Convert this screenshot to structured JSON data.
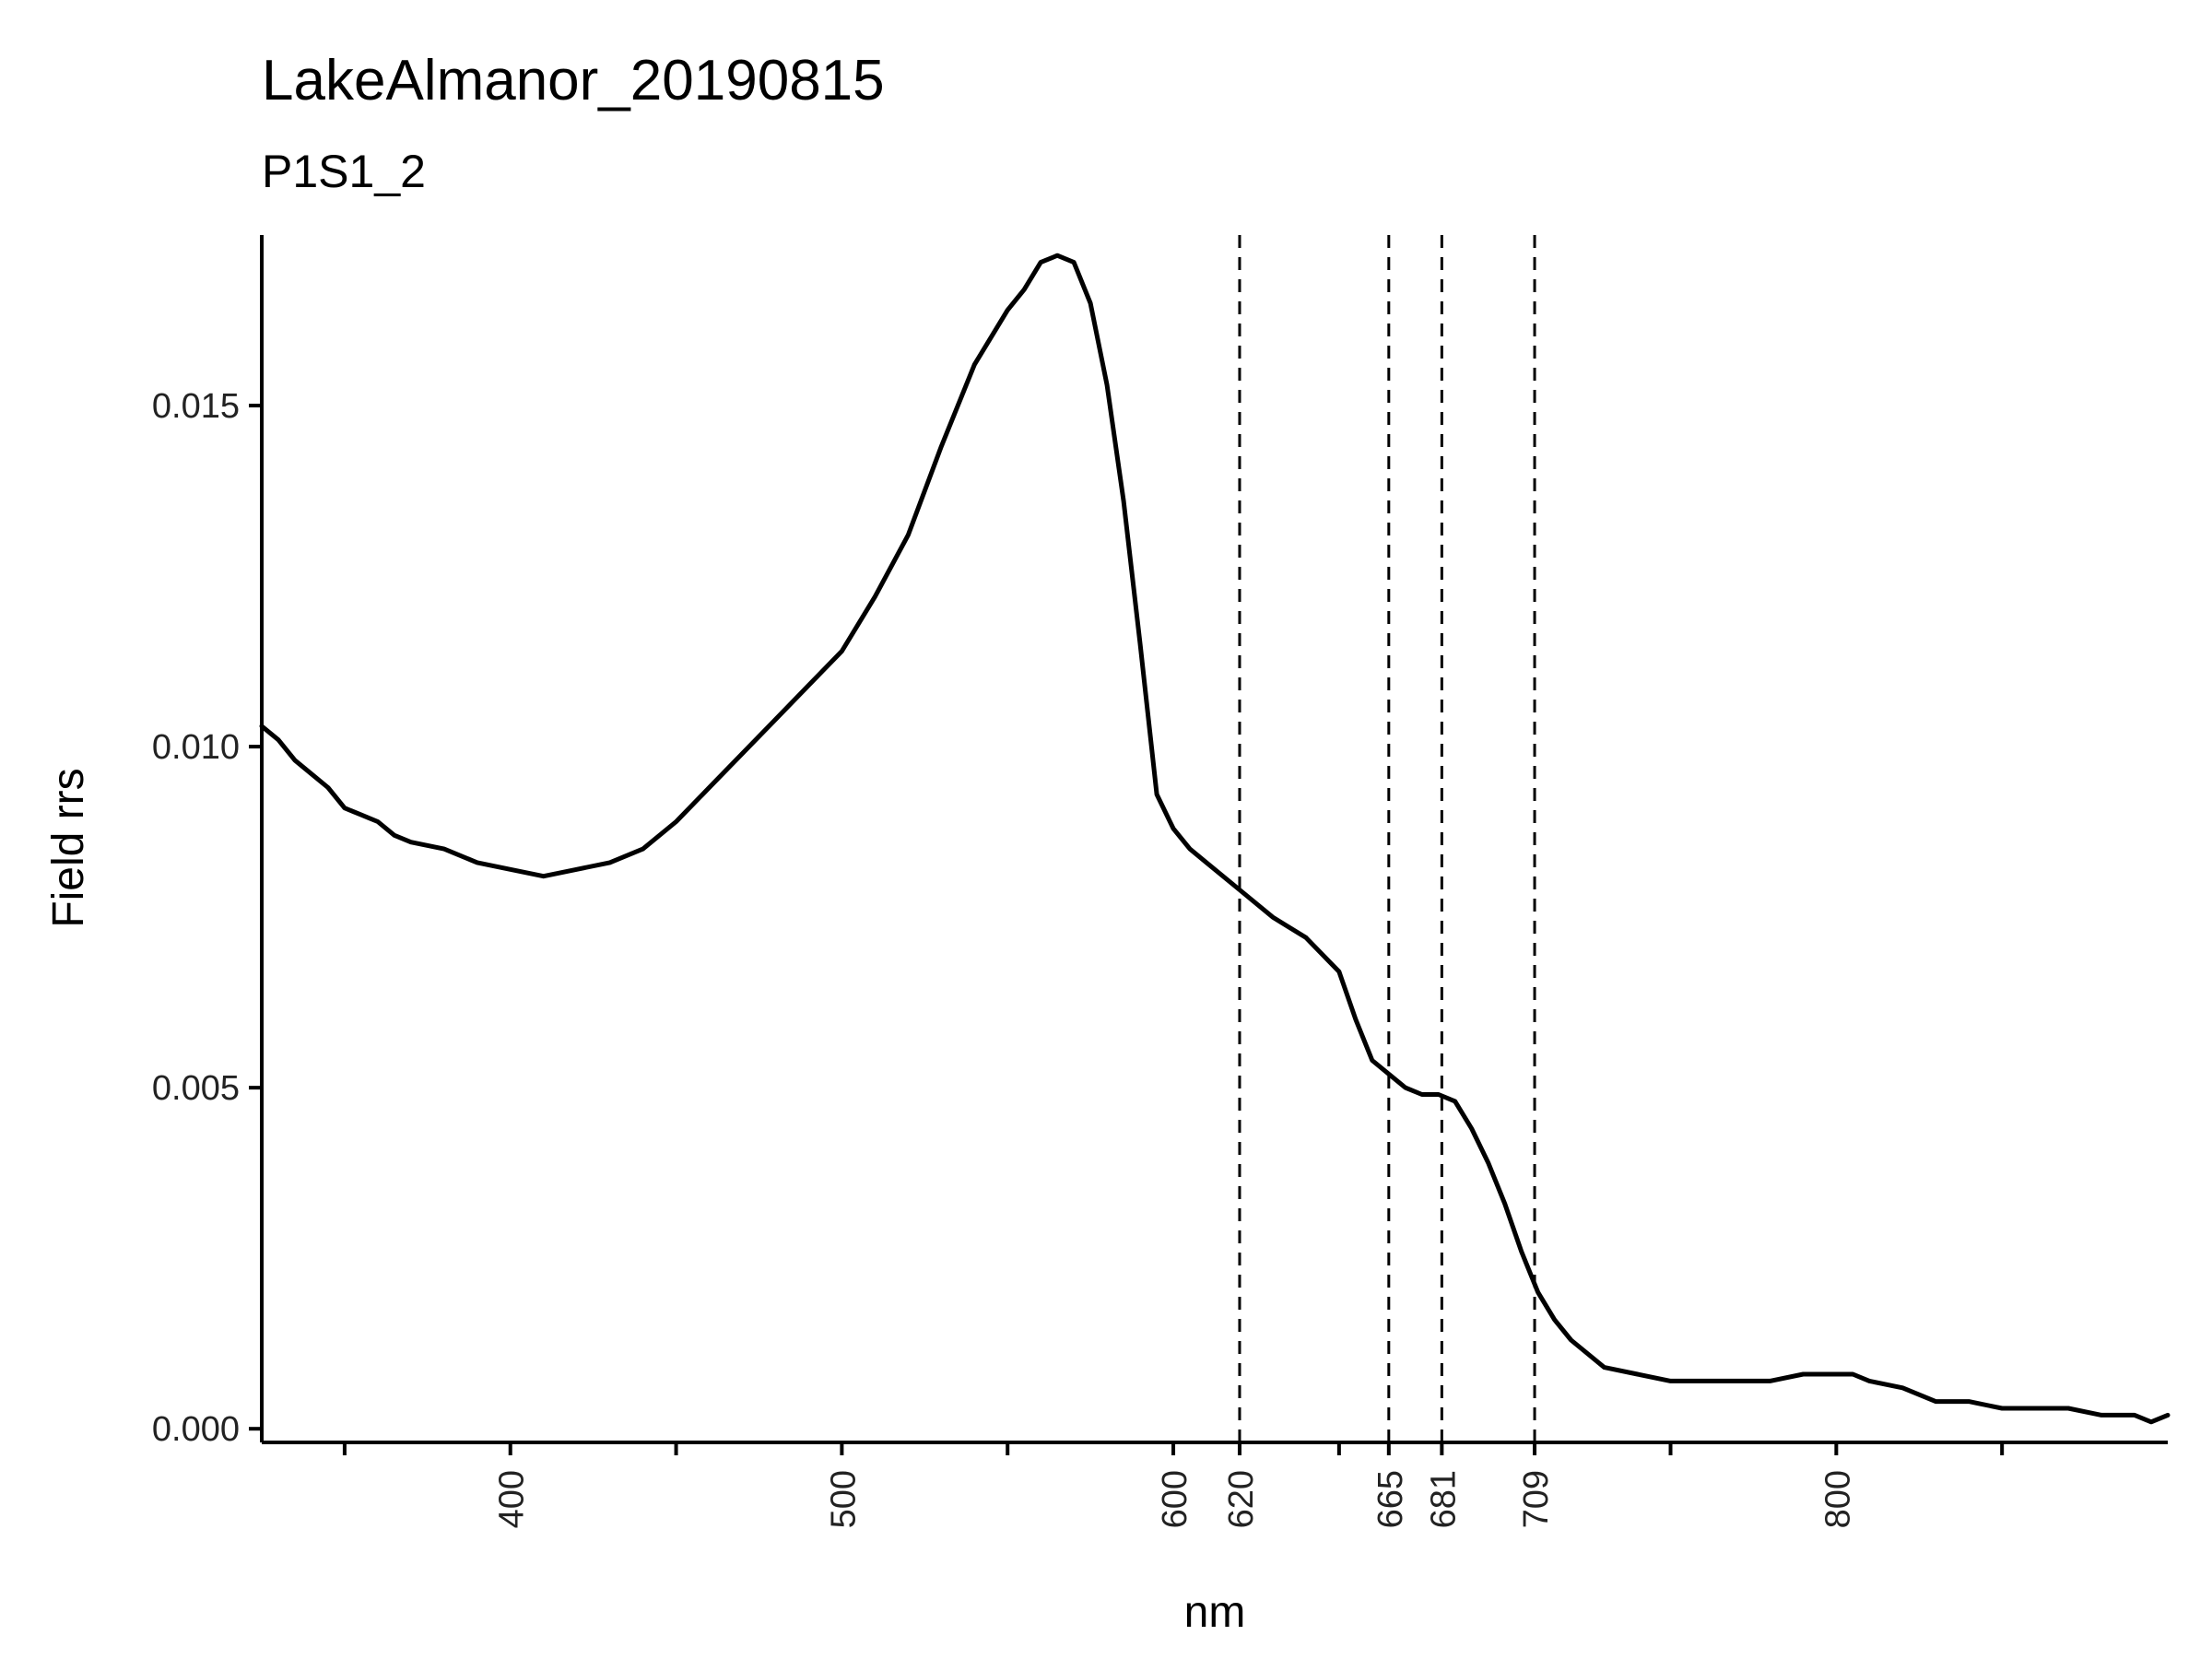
{
  "chart_data": {
    "type": "line",
    "title": "LakeAlmanor_20190815",
    "subtitle": "P1S1_2",
    "xlabel": "nm",
    "ylabel": "Field rrs",
    "xlim": [
      325,
      900
    ],
    "ylim": [
      -0.0002,
      0.0175
    ],
    "grid": false,
    "legend": "none",
    "line_color": "#000000",
    "x_ticks": [
      350,
      400,
      450,
      500,
      550,
      600,
      620,
      650,
      665,
      681,
      709,
      750,
      800,
      850
    ],
    "x_tick_labels": [
      {
        "value": 400,
        "label": "400"
      },
      {
        "value": 500,
        "label": "500"
      },
      {
        "value": 600,
        "label": "600"
      },
      {
        "value": 620,
        "label": "620"
      },
      {
        "value": 665,
        "label": "665"
      },
      {
        "value": 681,
        "label": "681"
      },
      {
        "value": 709,
        "label": "709"
      },
      {
        "value": 800,
        "label": "800"
      }
    ],
    "y_ticks": [
      {
        "value": 0.0,
        "label": "0.000"
      },
      {
        "value": 0.005,
        "label": "0.005"
      },
      {
        "value": 0.01,
        "label": "0.010"
      },
      {
        "value": 0.015,
        "label": "0.015"
      }
    ],
    "vlines": [
      620,
      665,
      681,
      709
    ],
    "series": [
      {
        "x": [
          325,
          330,
          335,
          340,
          345,
          350,
          355,
          360,
          365,
          370,
          380,
          390,
          400,
          410,
          420,
          430,
          440,
          450,
          460,
          470,
          480,
          490,
          500,
          510,
          520,
          530,
          540,
          550,
          555,
          560,
          565,
          570,
          575,
          580,
          585,
          590,
          595,
          600,
          605,
          610,
          620,
          630,
          640,
          650,
          655,
          660,
          665,
          670,
          675,
          680,
          685,
          690,
          695,
          700,
          705,
          710,
          715,
          720,
          730,
          740,
          750,
          760,
          770,
          780,
          790,
          800,
          805,
          810,
          820,
          830,
          840,
          850,
          860,
          870,
          880,
          890,
          895,
          900
        ],
        "y": [
          0.0103,
          0.0101,
          0.0098,
          0.0096,
          0.0094,
          0.0091,
          0.009,
          0.0089,
          0.0087,
          0.0086,
          0.0085,
          0.0083,
          0.0082,
          0.0081,
          0.0082,
          0.0083,
          0.0085,
          0.0089,
          0.0094,
          0.0099,
          0.0104,
          0.0109,
          0.0114,
          0.0122,
          0.0131,
          0.0144,
          0.0156,
          0.0164,
          0.0167,
          0.0171,
          0.0172,
          0.0171,
          0.0165,
          0.0153,
          0.0136,
          0.0115,
          0.0093,
          0.0088,
          0.0085,
          0.0083,
          0.0079,
          0.0075,
          0.0072,
          0.0067,
          0.006,
          0.0054,
          0.0052,
          0.005,
          0.0049,
          0.0049,
          0.0048,
          0.0044,
          0.0039,
          0.0033,
          0.0026,
          0.002,
          0.0016,
          0.0013,
          0.0009,
          0.0008,
          0.0007,
          0.0007,
          0.0007,
          0.0007,
          0.0008,
          0.0008,
          0.0008,
          0.0007,
          0.0006,
          0.0004,
          0.0004,
          0.0003,
          0.0003,
          0.0003,
          0.0002,
          0.0002,
          0.0001,
          0.0002
        ]
      }
    ]
  }
}
